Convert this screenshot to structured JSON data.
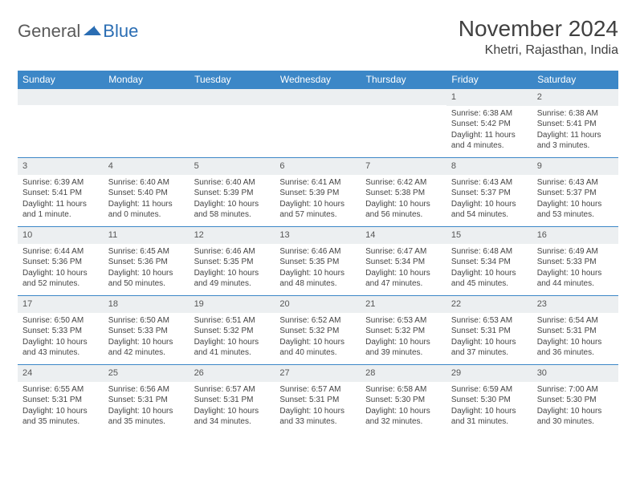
{
  "logo": {
    "general": "General",
    "blue": "Blue"
  },
  "title": "November 2024",
  "location": "Khetri, Rajasthan, India",
  "colors": {
    "header_bg": "#3c87c7",
    "header_text": "#ffffff",
    "daynum_bg": "#eceff1",
    "border": "#3c87c7",
    "logo_blue": "#2a6db3",
    "logo_gray": "#5a5a5a"
  },
  "day_headers": [
    "Sunday",
    "Monday",
    "Tuesday",
    "Wednesday",
    "Thursday",
    "Friday",
    "Saturday"
  ],
  "weeks": [
    [
      {
        "n": "",
        "sr": "",
        "ss": "",
        "dl": ""
      },
      {
        "n": "",
        "sr": "",
        "ss": "",
        "dl": ""
      },
      {
        "n": "",
        "sr": "",
        "ss": "",
        "dl": ""
      },
      {
        "n": "",
        "sr": "",
        "ss": "",
        "dl": ""
      },
      {
        "n": "",
        "sr": "",
        "ss": "",
        "dl": ""
      },
      {
        "n": "1",
        "sr": "Sunrise: 6:38 AM",
        "ss": "Sunset: 5:42 PM",
        "dl": "Daylight: 11 hours and 4 minutes."
      },
      {
        "n": "2",
        "sr": "Sunrise: 6:38 AM",
        "ss": "Sunset: 5:41 PM",
        "dl": "Daylight: 11 hours and 3 minutes."
      }
    ],
    [
      {
        "n": "3",
        "sr": "Sunrise: 6:39 AM",
        "ss": "Sunset: 5:41 PM",
        "dl": "Daylight: 11 hours and 1 minute."
      },
      {
        "n": "4",
        "sr": "Sunrise: 6:40 AM",
        "ss": "Sunset: 5:40 PM",
        "dl": "Daylight: 11 hours and 0 minutes."
      },
      {
        "n": "5",
        "sr": "Sunrise: 6:40 AM",
        "ss": "Sunset: 5:39 PM",
        "dl": "Daylight: 10 hours and 58 minutes."
      },
      {
        "n": "6",
        "sr": "Sunrise: 6:41 AM",
        "ss": "Sunset: 5:39 PM",
        "dl": "Daylight: 10 hours and 57 minutes."
      },
      {
        "n": "7",
        "sr": "Sunrise: 6:42 AM",
        "ss": "Sunset: 5:38 PM",
        "dl": "Daylight: 10 hours and 56 minutes."
      },
      {
        "n": "8",
        "sr": "Sunrise: 6:43 AM",
        "ss": "Sunset: 5:37 PM",
        "dl": "Daylight: 10 hours and 54 minutes."
      },
      {
        "n": "9",
        "sr": "Sunrise: 6:43 AM",
        "ss": "Sunset: 5:37 PM",
        "dl": "Daylight: 10 hours and 53 minutes."
      }
    ],
    [
      {
        "n": "10",
        "sr": "Sunrise: 6:44 AM",
        "ss": "Sunset: 5:36 PM",
        "dl": "Daylight: 10 hours and 52 minutes."
      },
      {
        "n": "11",
        "sr": "Sunrise: 6:45 AM",
        "ss": "Sunset: 5:36 PM",
        "dl": "Daylight: 10 hours and 50 minutes."
      },
      {
        "n": "12",
        "sr": "Sunrise: 6:46 AM",
        "ss": "Sunset: 5:35 PM",
        "dl": "Daylight: 10 hours and 49 minutes."
      },
      {
        "n": "13",
        "sr": "Sunrise: 6:46 AM",
        "ss": "Sunset: 5:35 PM",
        "dl": "Daylight: 10 hours and 48 minutes."
      },
      {
        "n": "14",
        "sr": "Sunrise: 6:47 AM",
        "ss": "Sunset: 5:34 PM",
        "dl": "Daylight: 10 hours and 47 minutes."
      },
      {
        "n": "15",
        "sr": "Sunrise: 6:48 AM",
        "ss": "Sunset: 5:34 PM",
        "dl": "Daylight: 10 hours and 45 minutes."
      },
      {
        "n": "16",
        "sr": "Sunrise: 6:49 AM",
        "ss": "Sunset: 5:33 PM",
        "dl": "Daylight: 10 hours and 44 minutes."
      }
    ],
    [
      {
        "n": "17",
        "sr": "Sunrise: 6:50 AM",
        "ss": "Sunset: 5:33 PM",
        "dl": "Daylight: 10 hours and 43 minutes."
      },
      {
        "n": "18",
        "sr": "Sunrise: 6:50 AM",
        "ss": "Sunset: 5:33 PM",
        "dl": "Daylight: 10 hours and 42 minutes."
      },
      {
        "n": "19",
        "sr": "Sunrise: 6:51 AM",
        "ss": "Sunset: 5:32 PM",
        "dl": "Daylight: 10 hours and 41 minutes."
      },
      {
        "n": "20",
        "sr": "Sunrise: 6:52 AM",
        "ss": "Sunset: 5:32 PM",
        "dl": "Daylight: 10 hours and 40 minutes."
      },
      {
        "n": "21",
        "sr": "Sunrise: 6:53 AM",
        "ss": "Sunset: 5:32 PM",
        "dl": "Daylight: 10 hours and 39 minutes."
      },
      {
        "n": "22",
        "sr": "Sunrise: 6:53 AM",
        "ss": "Sunset: 5:31 PM",
        "dl": "Daylight: 10 hours and 37 minutes."
      },
      {
        "n": "23",
        "sr": "Sunrise: 6:54 AM",
        "ss": "Sunset: 5:31 PM",
        "dl": "Daylight: 10 hours and 36 minutes."
      }
    ],
    [
      {
        "n": "24",
        "sr": "Sunrise: 6:55 AM",
        "ss": "Sunset: 5:31 PM",
        "dl": "Daylight: 10 hours and 35 minutes."
      },
      {
        "n": "25",
        "sr": "Sunrise: 6:56 AM",
        "ss": "Sunset: 5:31 PM",
        "dl": "Daylight: 10 hours and 35 minutes."
      },
      {
        "n": "26",
        "sr": "Sunrise: 6:57 AM",
        "ss": "Sunset: 5:31 PM",
        "dl": "Daylight: 10 hours and 34 minutes."
      },
      {
        "n": "27",
        "sr": "Sunrise: 6:57 AM",
        "ss": "Sunset: 5:31 PM",
        "dl": "Daylight: 10 hours and 33 minutes."
      },
      {
        "n": "28",
        "sr": "Sunrise: 6:58 AM",
        "ss": "Sunset: 5:30 PM",
        "dl": "Daylight: 10 hours and 32 minutes."
      },
      {
        "n": "29",
        "sr": "Sunrise: 6:59 AM",
        "ss": "Sunset: 5:30 PM",
        "dl": "Daylight: 10 hours and 31 minutes."
      },
      {
        "n": "30",
        "sr": "Sunrise: 7:00 AM",
        "ss": "Sunset: 5:30 PM",
        "dl": "Daylight: 10 hours and 30 minutes."
      }
    ]
  ]
}
